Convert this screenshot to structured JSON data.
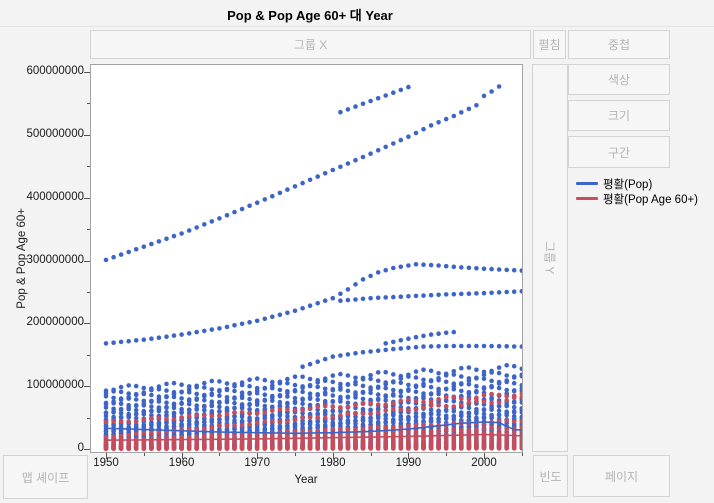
{
  "header": {
    "title": "Pop & Pop Age 60+ 대 Year"
  },
  "drop_zones": {
    "group_x": "그룹 X",
    "group_y": "그룹 Y",
    "spread": "펼침",
    "overlay": "중첩",
    "color": "색상",
    "size": "크기",
    "interval": "구간",
    "map_shape": "맵 셰이프",
    "freq": "빈도",
    "page": "페이지"
  },
  "legend": {
    "items": [
      {
        "label": "평활(Pop)",
        "color": "#3D64C6"
      },
      {
        "label": "평활(Pop Age 60+)",
        "color": "#C54D5C"
      }
    ]
  },
  "axes": {
    "y_title": "Pop & Pop Age 60+",
    "x_title": "Year"
  },
  "chart_data": {
    "type": "scatter",
    "title": "Pop & Pop Age 60+ 대 Year",
    "xlabel": "Year",
    "ylabel": "Pop & Pop Age 60+",
    "legend_position": "right",
    "grid": false,
    "xlim": [
      1948,
      2006
    ],
    "ylim_millions": [
      -13,
      608
    ],
    "x_major_ticks": [
      1950,
      1960,
      1970,
      1980,
      1990,
      2000
    ],
    "x_minor_ticks": [
      1955,
      1965,
      1975,
      1985,
      1995,
      2005
    ],
    "y_major_ticks": [
      {
        "value_millions": 0,
        "label": "0"
      },
      {
        "value_millions": 100,
        "label": "100000000"
      },
      {
        "value_millions": 200,
        "label": "200000000"
      },
      {
        "value_millions": 300,
        "label": "300000000"
      },
      {
        "value_millions": 400,
        "label": "400000000"
      },
      {
        "value_millions": 500,
        "label": "500000000"
      },
      {
        "value_millions": 600,
        "label": "600000000"
      }
    ],
    "y_minor_ticks_millions": [
      50,
      150,
      250,
      350,
      450,
      550
    ],
    "point_color_pop": "#3D64C6",
    "point_color_age60": "#C54D5C",
    "blue_series": [
      {
        "name": "top-diagonal",
        "points_year_millions": [
          [
            1950,
            301
          ],
          [
            1955,
            322
          ],
          [
            1960,
            343
          ],
          [
            1965,
            367
          ],
          [
            1970,
            392
          ],
          [
            1975,
            418
          ],
          [
            1980,
            444
          ],
          [
            1985,
            470
          ],
          [
            1990,
            497
          ],
          [
            1993,
            515
          ],
          [
            1996,
            530
          ],
          [
            1999,
            547
          ],
          [
            2000,
            562
          ],
          [
            2001,
            569
          ],
          [
            2002,
            577
          ]
        ]
      },
      {
        "name": "upper-segment-1981-1990",
        "points_year_millions": [
          [
            1981,
            536
          ],
          [
            1990,
            576
          ]
        ]
      },
      {
        "name": "rising-then-flat-290",
        "points_year_millions": [
          [
            1950,
            168
          ],
          [
            1955,
            174
          ],
          [
            1960,
            182
          ],
          [
            1965,
            192
          ],
          [
            1970,
            204
          ],
          [
            1975,
            220
          ],
          [
            1980,
            240
          ],
          [
            1982,
            254
          ],
          [
            1984,
            270
          ],
          [
            1986,
            281
          ],
          [
            1988,
            288
          ],
          [
            1991,
            294
          ],
          [
            1994,
            292
          ],
          [
            1997,
            289
          ],
          [
            2000,
            287
          ],
          [
            2003,
            285
          ],
          [
            2005,
            284
          ]
        ]
      },
      {
        "name": "flat-250",
        "points_year_millions": [
          [
            1981,
            236
          ],
          [
            1985,
            240
          ],
          [
            1990,
            243
          ],
          [
            1995,
            246
          ],
          [
            2000,
            248
          ],
          [
            2005,
            251
          ]
        ]
      },
      {
        "name": "flat-163",
        "points_year_millions": [
          [
            1976,
            131
          ],
          [
            1980,
            147
          ],
          [
            1984,
            154
          ],
          [
            1988,
            159
          ],
          [
            1992,
            163
          ],
          [
            1996,
            164
          ],
          [
            2000,
            164
          ],
          [
            2005,
            163
          ]
        ]
      },
      {
        "name": "short-rise-185",
        "points_year_millions": [
          [
            1987,
            168
          ],
          [
            1989,
            173
          ],
          [
            1991,
            178
          ],
          [
            1993,
            182
          ],
          [
            1995,
            185
          ],
          [
            1996,
            186
          ]
        ]
      }
    ],
    "blue_cluster_bands_1950_to_2005_millions": [
      [
        96,
        130
      ],
      [
        88,
        120
      ],
      [
        82,
        112
      ],
      [
        76,
        104
      ],
      [
        70,
        97
      ],
      [
        65,
        90
      ],
      [
        60,
        84
      ],
      [
        56,
        78
      ],
      [
        52,
        72
      ],
      [
        48,
        67
      ],
      [
        44,
        62
      ],
      [
        41,
        57
      ],
      [
        38,
        53
      ],
      [
        35,
        49
      ],
      [
        32,
        45
      ],
      [
        29,
        41
      ],
      [
        27,
        38
      ],
      [
        24,
        35
      ],
      [
        22,
        32
      ],
      [
        20,
        29
      ],
      [
        18,
        26
      ],
      [
        16,
        23
      ],
      [
        14,
        21
      ],
      [
        12,
        18
      ],
      [
        10,
        15
      ],
      [
        8,
        13
      ],
      [
        7,
        11
      ],
      [
        6,
        9
      ],
      [
        5,
        7.5
      ],
      [
        4,
        6
      ],
      [
        3,
        5
      ],
      [
        2,
        3.5
      ],
      [
        1.5,
        2.5
      ]
    ],
    "red_cluster_bands_1950_to_2005_millions": [
      [
        42,
        88
      ],
      [
        19,
        80
      ],
      [
        13,
        45
      ],
      [
        9,
        34
      ],
      [
        7,
        27
      ],
      [
        5.5,
        21
      ],
      [
        4.5,
        17
      ],
      [
        3.8,
        14
      ],
      [
        3.2,
        11.5
      ],
      [
        2.7,
        9.5
      ],
      [
        2.3,
        8
      ],
      [
        1.9,
        6.5
      ],
      [
        1.6,
        5.2
      ],
      [
        1.3,
        4.2
      ],
      [
        1,
        3.3
      ],
      [
        0.8,
        2.6
      ],
      [
        0.6,
        2
      ],
      [
        0.45,
        1.5
      ],
      [
        0.3,
        1
      ]
    ],
    "smoothers": [
      {
        "name": "평활(Pop)",
        "color": "#3D64C6",
        "points_year_millions": [
          [
            1950,
            33
          ],
          [
            1955,
            31
          ],
          [
            1960,
            29
          ],
          [
            1965,
            27
          ],
          [
            1970,
            26
          ],
          [
            1975,
            25
          ],
          [
            1980,
            26
          ],
          [
            1985,
            28
          ],
          [
            1988,
            30
          ],
          [
            1991,
            33
          ],
          [
            1994,
            37
          ],
          [
            1997,
            41
          ],
          [
            2000,
            43
          ],
          [
            2002,
            42
          ],
          [
            2003,
            36
          ],
          [
            2004,
            31
          ],
          [
            2005,
            30
          ]
        ]
      },
      {
        "name": "평활(Pop Age 60+)",
        "color": "#C54D5C",
        "points_year_millions": [
          [
            1950,
            14
          ],
          [
            1960,
            15
          ],
          [
            1970,
            16
          ],
          [
            1980,
            18
          ],
          [
            1990,
            20
          ],
          [
            2000,
            23
          ],
          [
            2003,
            22
          ],
          [
            2005,
            21
          ]
        ]
      }
    ]
  }
}
